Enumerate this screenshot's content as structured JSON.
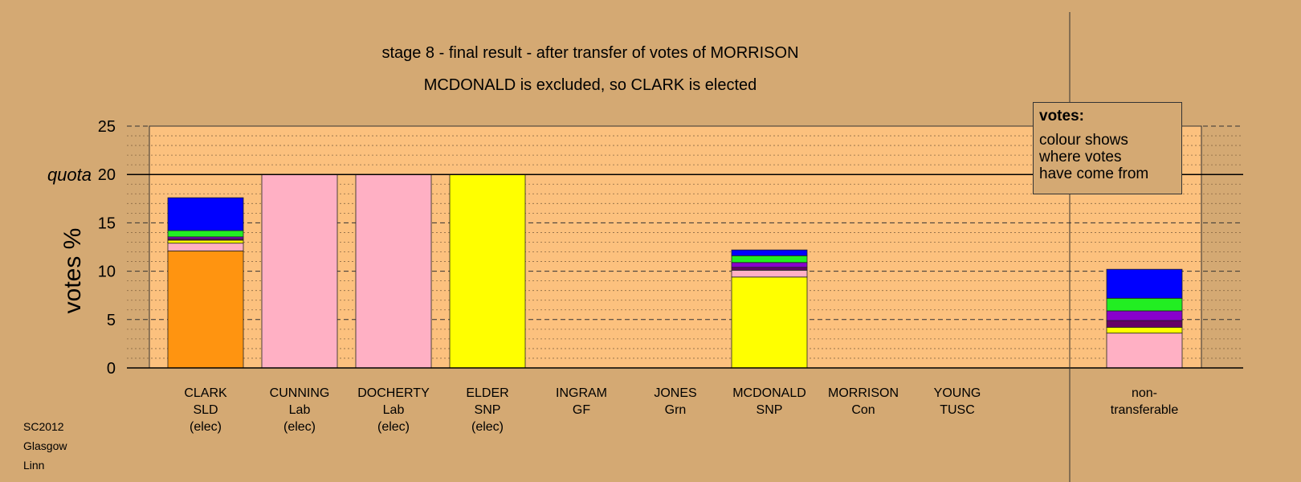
{
  "title_line1": "stage 8 - final result - after transfer of votes of MORRISON",
  "title_line2": "MCDONALD is excluded, so CLARK is elected",
  "footer": [
    "SC2012",
    "Glasgow",
    "Linn"
  ],
  "legend": {
    "title": "votes:",
    "lines": [
      "colour shows",
      "where votes",
      "have come from"
    ]
  },
  "colors": {
    "background": "#d4a973",
    "plot_area": "#fcc17e",
    "SLD": "#ff9410",
    "Lab": "#ffb0c4",
    "SNP": "#ffff00",
    "Con": "#0000ff",
    "Grn": "#22ee22",
    "GF": "#8800cc",
    "TUSC": "#660066"
  },
  "chart_data": {
    "type": "bar",
    "stacked": true,
    "ylabel": "votes %",
    "ylim": [
      0,
      25
    ],
    "yticks": [
      0,
      5,
      10,
      15,
      20,
      25
    ],
    "quota": 20,
    "quota_label": "quota",
    "grid": true,
    "categories": [
      {
        "name": "CLARK",
        "party": "SLD",
        "status": "(elec)"
      },
      {
        "name": "CUNNING",
        "party": "Lab",
        "status": "(elec)"
      },
      {
        "name": "DOCHERTY",
        "party": "Lab",
        "status": "(elec)"
      },
      {
        "name": "ELDER",
        "party": "SNP",
        "status": "(elec)"
      },
      {
        "name": "INGRAM",
        "party": "GF",
        "status": ""
      },
      {
        "name": "JONES",
        "party": "Grn",
        "status": ""
      },
      {
        "name": "MCDONALD",
        "party": "SNP",
        "status": ""
      },
      {
        "name": "MORRISON",
        "party": "Con",
        "status": ""
      },
      {
        "name": "YOUNG",
        "party": "TUSC",
        "status": ""
      },
      {
        "name": "non-",
        "party": "transferable",
        "status": ""
      }
    ],
    "stacks": [
      [
        {
          "source": "SLD",
          "value": 12.1
        },
        {
          "source": "Lab",
          "value": 0.8
        },
        {
          "source": "SNP",
          "value": 0.3
        },
        {
          "source": "TUSC",
          "value": 0.15
        },
        {
          "source": "GF",
          "value": 0.2
        },
        {
          "source": "Grn",
          "value": 0.65
        },
        {
          "source": "Con",
          "value": 3.4
        }
      ],
      [
        {
          "source": "Lab",
          "value": 20
        }
      ],
      [
        {
          "source": "Lab",
          "value": 20
        }
      ],
      [
        {
          "source": "SNP",
          "value": 20
        }
      ],
      [],
      [],
      [
        {
          "source": "SNP",
          "value": 9.4
        },
        {
          "source": "Lab",
          "value": 0.7
        },
        {
          "source": "TUSC",
          "value": 0.3
        },
        {
          "source": "GF",
          "value": 0.5
        },
        {
          "source": "Grn",
          "value": 0.7
        },
        {
          "source": "Con",
          "value": 0.6
        }
      ],
      [],
      [],
      [
        {
          "source": "Lab",
          "value": 3.6
        },
        {
          "source": "SNP",
          "value": 0.6
        },
        {
          "source": "TUSC",
          "value": 0.7
        },
        {
          "source": "GF",
          "value": 1.0
        },
        {
          "source": "Grn",
          "value": 1.3
        },
        {
          "source": "Con",
          "value": 3.0
        }
      ]
    ]
  }
}
